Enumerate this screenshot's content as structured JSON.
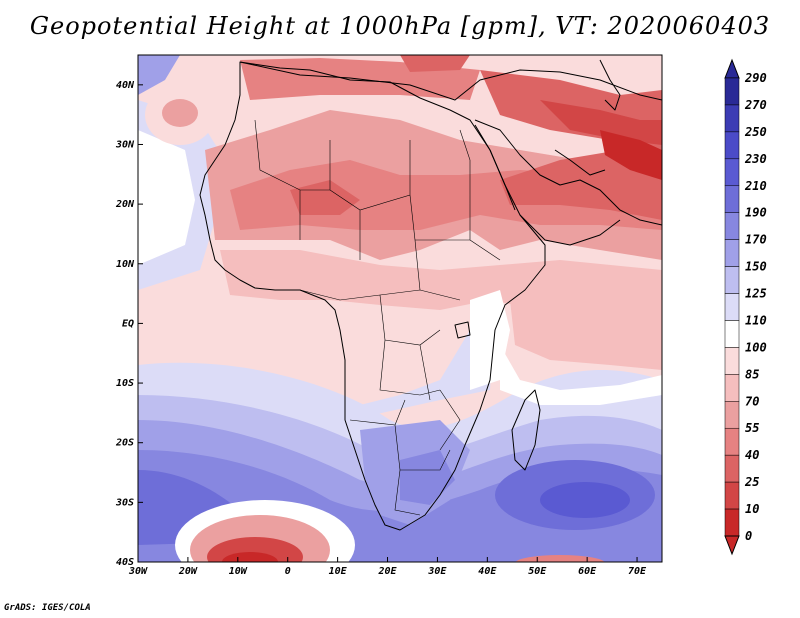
{
  "title": "Geopotential Height at 1000hPa [gpm], VT: 2020060403",
  "credit": "GrADS: IGES/COLA",
  "map": {
    "lon_range": [
      -30,
      75
    ],
    "lat_range": [
      -40,
      45
    ],
    "lon_ticks": [
      {
        "value": -30,
        "label": "30W"
      },
      {
        "value": -20,
        "label": "20W"
      },
      {
        "value": -10,
        "label": "10W"
      },
      {
        "value": 0,
        "label": "0"
      },
      {
        "value": 10,
        "label": "10E"
      },
      {
        "value": 20,
        "label": "20E"
      },
      {
        "value": 30,
        "label": "30E"
      },
      {
        "value": 40,
        "label": "40E"
      },
      {
        "value": 50,
        "label": "50E"
      },
      {
        "value": 60,
        "label": "60E"
      },
      {
        "value": 70,
        "label": "70E"
      }
    ],
    "lat_ticks": [
      {
        "value": 40,
        "label": "40N"
      },
      {
        "value": 30,
        "label": "30N"
      },
      {
        "value": 20,
        "label": "20N"
      },
      {
        "value": 10,
        "label": "10N"
      },
      {
        "value": 0,
        "label": "EQ"
      },
      {
        "value": -10,
        "label": "10S"
      },
      {
        "value": -20,
        "label": "20S"
      },
      {
        "value": -30,
        "label": "30S"
      },
      {
        "value": -40,
        "label": "40S"
      }
    ]
  },
  "colorbar": {
    "levels": [
      "290",
      "270",
      "250",
      "230",
      "210",
      "190",
      "170",
      "150",
      "125",
      "110",
      "100",
      "85",
      "70",
      "55",
      "40",
      "25",
      "10",
      "0"
    ],
    "colors": [
      "#2a2a96",
      "#3c3cb4",
      "#4b4bc8",
      "#5a5ad2",
      "#6e6ed8",
      "#8787e0",
      "#a0a0e8",
      "#bebef0",
      "#dcdcf7",
      "#ffffff",
      "#fadcdc",
      "#f5bebe",
      "#eba0a0",
      "#e68282",
      "#dc6464",
      "#d24646",
      "#c82828"
    ]
  },
  "legend_colors": {
    "ocean_high": "#5a5ad2",
    "land_high": "#e68282",
    "neutral": "#ffffff"
  }
}
